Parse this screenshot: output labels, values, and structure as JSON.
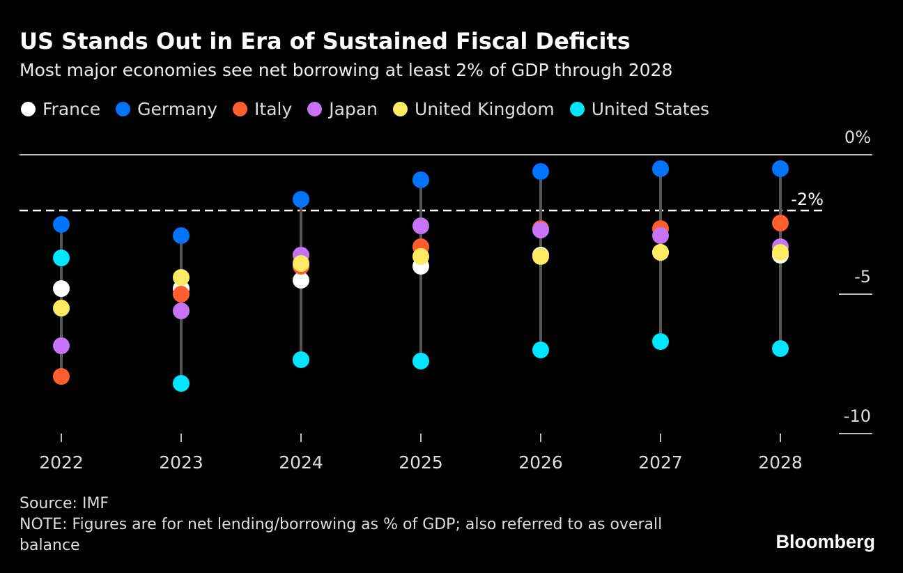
{
  "chart_data": {
    "type": "scatter",
    "title": "US Stands Out in Era of Sustained Fiscal Deficits",
    "subtitle": "Most major economies see net borrowing at least 2% of GDP through 2028",
    "categories": [
      "2022",
      "2023",
      "2024",
      "2025",
      "2026",
      "2027",
      "2028"
    ],
    "series": [
      {
        "name": "France",
        "color": "#ffffff",
        "values": [
          -4.8,
          -4.8,
          -4.5,
          -4.0,
          -3.6,
          -3.5,
          -3.6
        ]
      },
      {
        "name": "Germany",
        "color": "#0073ff",
        "values": [
          -2.5,
          -2.9,
          -1.6,
          -0.9,
          -0.6,
          -0.5,
          -0.5
        ]
      },
      {
        "name": "Italy",
        "color": "#ff5f2e",
        "values": [
          -7.95,
          -5.0,
          -4.0,
          -3.3,
          -2.65,
          -2.65,
          -2.45
        ]
      },
      {
        "name": "Japan",
        "color": "#c773f7",
        "values": [
          -6.85,
          -5.6,
          -3.6,
          -2.55,
          -2.7,
          -2.9,
          -3.3
        ]
      },
      {
        "name": "United Kingdom",
        "color": "#ffea62",
        "values": [
          -5.5,
          -4.4,
          -3.9,
          -3.65,
          -3.65,
          -3.5,
          -3.5
        ]
      },
      {
        "name": "United States",
        "color": "#00e6ff",
        "values": [
          -3.7,
          -8.2,
          -7.35,
          -7.4,
          -7.0,
          -6.7,
          -6.95
        ]
      }
    ],
    "ylim": [
      -10.2,
      0
    ],
    "yticks": [
      {
        "value": 0,
        "label": "0%"
      },
      {
        "value": -5,
        "label": "-5"
      },
      {
        "value": -10,
        "label": "-10"
      }
    ],
    "reference_line": {
      "value": -2,
      "label": "-2%"
    },
    "legend_position": "top-left"
  },
  "footer": {
    "source": "Source: IMF",
    "note": "NOTE: Figures are for net lending/borrowing as % of GDP; also referred to as overall balance"
  },
  "brand": "Bloomberg"
}
